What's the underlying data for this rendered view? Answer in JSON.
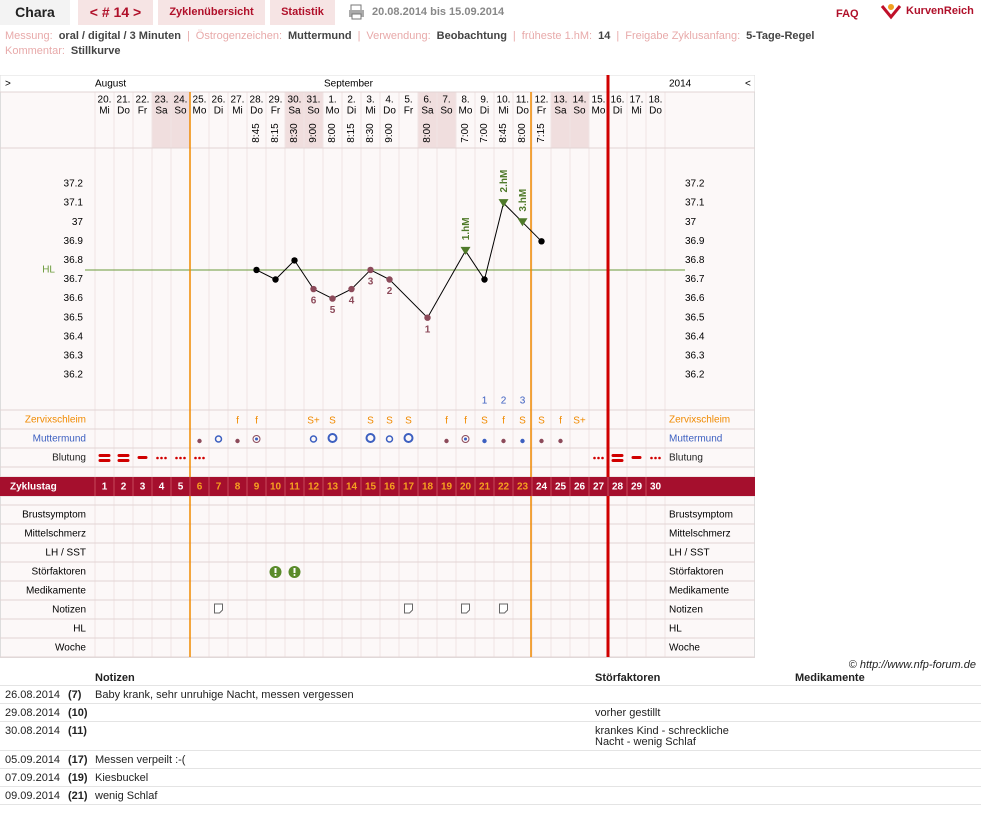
{
  "header": {
    "user": "Chara",
    "cycle": "< # 14 >",
    "tabs": [
      "Zyklenübersicht",
      "Statistik"
    ],
    "period": "20.08.2014 bis 15.09.2014",
    "faq": "FAQ",
    "brand": "KurvenReich"
  },
  "info": {
    "separator": "|",
    "items": [
      {
        "label": "Messung:",
        "value": "oral / digital / 3 Minuten"
      },
      {
        "label": "Östrogenzeichen:",
        "value": "Muttermund"
      },
      {
        "label": "Verwendung:",
        "value": "Beobachtung"
      },
      {
        "label": "früheste 1.hM:",
        "value": "14"
      },
      {
        "label": "Freigabe Zyklusanfang:",
        "value": "5-Tage-Regel"
      }
    ],
    "comment": {
      "label": "Kommentar:",
      "value": "Stillkurve"
    }
  },
  "chart_data": {
    "type": "line",
    "nav_left": ">",
    "nav_right": "<",
    "months": [
      "August",
      "September"
    ],
    "year": "2014",
    "days": [
      "20.",
      "21.",
      "22.",
      "23.",
      "24.",
      "25.",
      "26.",
      "27.",
      "28.",
      "29.",
      "30.",
      "31.",
      "1.",
      "2.",
      "3.",
      "4.",
      "5.",
      "6.",
      "7.",
      "8.",
      "9.",
      "10.",
      "11.",
      "12.",
      "13.",
      "14.",
      "15.",
      "16.",
      "17.",
      "18."
    ],
    "weekdays": [
      "Mi",
      "Do",
      "Fr",
      "Sa",
      "So",
      "Mo",
      "Di",
      "Mi",
      "Do",
      "Fr",
      "Sa",
      "So",
      "Mo",
      "Di",
      "Mi",
      "Do",
      "Fr",
      "Sa",
      "So",
      "Mo",
      "Di",
      "Mi",
      "Do",
      "Fr",
      "Sa",
      "So",
      "Mo",
      "Di",
      "Mi",
      "Do"
    ],
    "times": [
      null,
      null,
      null,
      null,
      null,
      null,
      null,
      null,
      "8:45",
      "8:15",
      "8:30",
      "9:00",
      "8:00",
      "8:15",
      "8:30",
      "9:00",
      null,
      "8:00",
      null,
      "7:00",
      "7:00",
      "8:45",
      "8:00",
      "7:15",
      null,
      null,
      null,
      null,
      null,
      null
    ],
    "x": [
      9,
      10,
      11,
      12,
      13,
      14,
      15,
      16,
      18,
      20,
      21,
      22,
      23,
      24
    ],
    "values": [
      36.75,
      36.7,
      36.8,
      36.65,
      36.6,
      36.65,
      36.75,
      36.7,
      36.5,
      36.85,
      36.7,
      37.1,
      37.0,
      36.9
    ],
    "color": "#000000",
    "low_color": "#8c4a5a",
    "high_color": "#4f7a2a",
    "ylim": [
      36.2,
      37.2
    ],
    "yticks": [
      36.2,
      36.3,
      36.4,
      36.5,
      36.6,
      36.7,
      36.8,
      36.9,
      37,
      37.1,
      37.2
    ],
    "hl": {
      "label": "HL",
      "value": 36.75,
      "color": "#6a9a3a"
    },
    "low_markers": [
      {
        "x": 18,
        "label": "1"
      },
      {
        "x": 16,
        "label": "2"
      },
      {
        "x": 15,
        "label": "3"
      },
      {
        "x": 14,
        "label": "4"
      },
      {
        "x": 13,
        "label": "5"
      },
      {
        "x": 12,
        "label": "6"
      }
    ],
    "high_markers": [
      {
        "x": 20,
        "label": "1.hM"
      },
      {
        "x": 22,
        "label": "2.hM"
      },
      {
        "x": 23,
        "label": "3.hM"
      }
    ],
    "mucus_count": {
      "x": [
        21,
        22,
        23
      ],
      "values": [
        1,
        2,
        3
      ]
    },
    "upper_rows": [
      "Zervixschleim",
      "Muttermund",
      "Blutung"
    ],
    "upper_row_colors": [
      "#f08a00",
      "#3c5fc0",
      "#222222"
    ],
    "zervixschleim": [
      null,
      null,
      null,
      null,
      null,
      null,
      null,
      "f",
      "f",
      null,
      null,
      "S+",
      "S",
      null,
      "S",
      "S",
      "S",
      null,
      "f",
      "f",
      "S",
      "f",
      "S",
      "S",
      "f",
      "S+",
      null,
      null,
      null,
      null
    ],
    "cycle_label": "Zyklustag",
    "cycle_days": [
      1,
      2,
      3,
      4,
      5,
      6,
      7,
      8,
      9,
      10,
      11,
      12,
      13,
      14,
      15,
      16,
      17,
      18,
      19,
      20,
      21,
      22,
      23,
      24,
      25,
      26,
      27,
      28,
      29,
      30
    ],
    "lower_rows": [
      "Brustsymptom",
      "Mittelschmerz",
      "LH / SST",
      "Störfaktoren",
      "Medikamente",
      "Notizen",
      "HL",
      "Woche"
    ],
    "copyright": "© http://www.nfp-forum.de"
  },
  "notes_table": {
    "headers": {
      "notes": "Notizen",
      "disturb": "Störfaktoren",
      "meds": "Medikamente"
    },
    "rows": [
      {
        "date": "26.08.2014",
        "day": "(7)",
        "note": "Baby krank, sehr unruhige Nacht, messen vergessen"
      },
      {
        "date": "29.08.2014",
        "day": "(10)",
        "disturb": [
          "vorher gestillt"
        ]
      },
      {
        "date": "30.08.2014",
        "day": "(11)",
        "disturb": [
          "krankes Kind - schreckliche",
          "Nacht - wenig Schlaf"
        ]
      },
      {
        "date": "05.09.2014",
        "day": "(17)",
        "note": "Messen verpeilt :-("
      },
      {
        "date": "07.09.2014",
        "day": "(19)",
        "note": "Kiesbuckel"
      },
      {
        "date": "09.09.2014",
        "day": "(21)",
        "note": "wenig Schlaf"
      }
    ]
  }
}
